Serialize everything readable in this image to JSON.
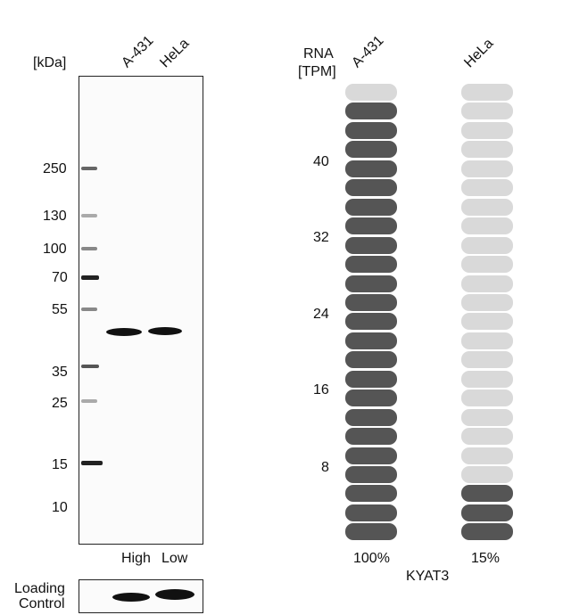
{
  "western_blot": {
    "unit_label": "[kDa]",
    "lanes": [
      "A-431",
      "HeLa"
    ],
    "markers": [
      "250",
      "130",
      "100",
      "70",
      "55",
      "35",
      "25",
      "15",
      "10"
    ],
    "lane_levels": [
      "High",
      "Low"
    ],
    "loading_control_label_line1": "Loading",
    "loading_control_label_line2": "Control"
  },
  "rna": {
    "header_line1": "RNA",
    "header_line2": "[TPM]",
    "samples": [
      "A-431",
      "HeLa"
    ],
    "scale_ticks": [
      "40",
      "32",
      "24",
      "16",
      "8"
    ],
    "gene": "KYAT3",
    "colors": {
      "filled": "#555555",
      "empty": "#d9d9d9"
    }
  },
  "chart_data": {
    "type": "bar",
    "categories": [
      "A-431",
      "HeLa"
    ],
    "values": [
      100,
      15
    ],
    "value_labels": [
      "100%",
      "15%"
    ],
    "value_unit": "%",
    "segments_total": 24,
    "segments_filled": [
      23,
      3
    ]
  }
}
